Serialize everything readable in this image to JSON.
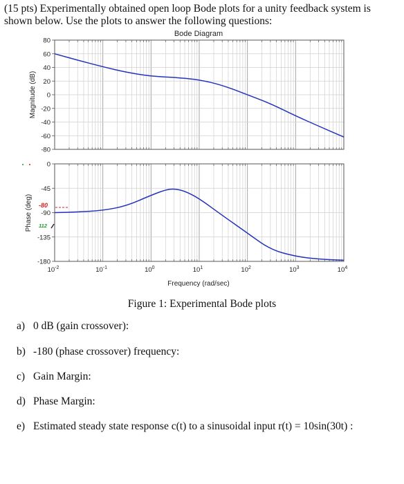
{
  "intro": "(15 pts) Experimentally obtained open loop Bode plots for a unity feedback system is shown below. Use the plots to answer the following questions:",
  "chart_data": {
    "type": "line",
    "title": "Bode Diagram",
    "xlabel": "Frequency (rad/sec)",
    "x_scale": "log",
    "xlim": [
      0.01,
      10000
    ],
    "x_ticks": [
      "10-2",
      "10-1",
      "100",
      "101",
      "102",
      "103",
      "104"
    ],
    "grid": true,
    "line_color": "#2233bb",
    "magnitude": {
      "ylabel": "Magnitude (dB)",
      "ylim": [
        -80,
        80
      ],
      "y_ticks": [
        "80",
        "60",
        "40",
        "20",
        "0",
        "-20",
        "-40",
        "-60",
        "-80"
      ],
      "series": [
        {
          "x": [
            0.01,
            0.03,
            0.1,
            0.3,
            1,
            3,
            10,
            30,
            100,
            300,
            1000,
            3000,
            10000
          ],
          "y": [
            60,
            50.5,
            41,
            33,
            27,
            25.5,
            22,
            14,
            0,
            -13,
            -31,
            -46,
            -62
          ]
        }
      ]
    },
    "phase": {
      "ylabel": "Phase (deg)",
      "ylim": [
        -180,
        0
      ],
      "y_ticks": [
        "0",
        "-45",
        "-90",
        "-135",
        "-180"
      ],
      "series": [
        {
          "x": [
            0.01,
            0.03,
            0.1,
            0.3,
            1,
            2,
            3,
            5,
            10,
            30,
            100,
            300,
            1000,
            3000,
            10000
          ],
          "y": [
            -90,
            -89,
            -86,
            -78,
            -58,
            -48,
            -46,
            -50,
            -64,
            -95,
            -128,
            -158,
            -171,
            -176,
            -178
          ]
        }
      ]
    },
    "annotations": [
      {
        "text": "-80",
        "color": "#d42020"
      },
      {
        "text": "112",
        "color": "#1f9a2e"
      }
    ]
  },
  "caption": "Figure 1: Experimental Bode plots",
  "questions": [
    {
      "label": "a)",
      "text": "0 dB (gain crossover):"
    },
    {
      "label": "b)",
      "text": "-180 (phase crossover) frequency:"
    },
    {
      "label": "c)",
      "text": "Gain Margin:"
    },
    {
      "label": "d)",
      "text": "Phase Margin:"
    },
    {
      "label": "e)",
      "text": "Estimated steady state response c(t) to a sinusoidal input r(t) = 10sin(30t) :"
    }
  ]
}
